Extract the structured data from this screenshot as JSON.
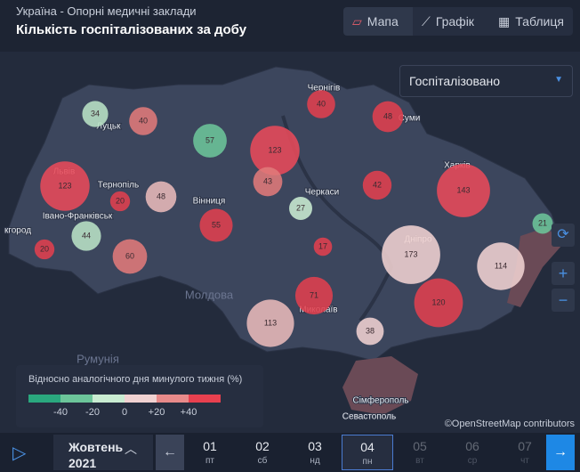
{
  "header": {
    "subtitle": "Україна - Опорні медичні заклади",
    "title": "Кількість госпіталізованих за добу"
  },
  "tabs": [
    "Мапа",
    "Графік",
    "Таблиця"
  ],
  "dropdown": "Госпіталізовано",
  "map": {
    "place_labels": [
      "Чернігів",
      "Суми",
      "Луцьк",
      "Львів",
      "Тернопіль",
      "Вінниця",
      "Черкаси",
      "Харків",
      "Івано-Франківськ",
      "кгород",
      "Дніпро",
      "Миколаїв",
      "Молдова",
      "Румунія",
      "Сімферополь",
      "Севастополь"
    ],
    "bubbles": [
      {
        "value": 34,
        "color": "#b9e3c6"
      },
      {
        "value": 40,
        "color": "#e07a7a"
      },
      {
        "value": 57,
        "color": "#6cc59a"
      },
      {
        "value": 123,
        "color": "#e84a5a"
      },
      {
        "value": 40,
        "color": "#e0404f"
      },
      {
        "value": 48,
        "color": "#e0404f"
      },
      {
        "value": 123,
        "color": "#e84a5a"
      },
      {
        "value": 20,
        "color": "#e0404f"
      },
      {
        "value": 48,
        "color": "#e8b9b9"
      },
      {
        "value": 43,
        "color": "#e07a7a"
      },
      {
        "value": 42,
        "color": "#e0404f"
      },
      {
        "value": 143,
        "color": "#e84a5a"
      },
      {
        "value": 27,
        "color": "#c9ecd2"
      },
      {
        "value": 21,
        "color": "#6cc59a"
      },
      {
        "value": 55,
        "color": "#e0404f"
      },
      {
        "value": 44,
        "color": "#b9e3c6"
      },
      {
        "value": 20,
        "color": "#e0404f"
      },
      {
        "value": 60,
        "color": "#e07a7a"
      },
      {
        "value": 17,
        "color": "#e0404f"
      },
      {
        "value": 173,
        "color": "#f0d2d2"
      },
      {
        "value": 114,
        "color": "#f0d2d2"
      },
      {
        "value": 71,
        "color": "#e0404f"
      },
      {
        "value": 120,
        "color": "#e0404f"
      },
      {
        "value": 113,
        "color": "#e8b9b9"
      },
      {
        "value": 38,
        "color": "#f0d2d2"
      }
    ]
  },
  "legend": {
    "title": "Відносно аналогічного дня минулого тижня (%)",
    "colors": [
      "#2aa87e",
      "#6cc59a",
      "#c9ecd2",
      "#f0d2d2",
      "#e88a8a",
      "#e8404f"
    ],
    "ticks": [
      "-40",
      "-20",
      "0",
      "+20",
      "+40"
    ]
  },
  "attribution": "©OpenStreetMap contributors",
  "timeline": {
    "month": "Жовтень",
    "year": "2021",
    "selected": 3,
    "days": [
      {
        "day": "01",
        "weekday": "пт"
      },
      {
        "day": "02",
        "weekday": "сб"
      },
      {
        "day": "03",
        "weekday": "нд"
      },
      {
        "day": "04",
        "weekday": "пн"
      },
      {
        "day": "05",
        "weekday": "вт"
      },
      {
        "day": "06",
        "weekday": "ср"
      },
      {
        "day": "07",
        "weekday": "чт"
      }
    ]
  }
}
